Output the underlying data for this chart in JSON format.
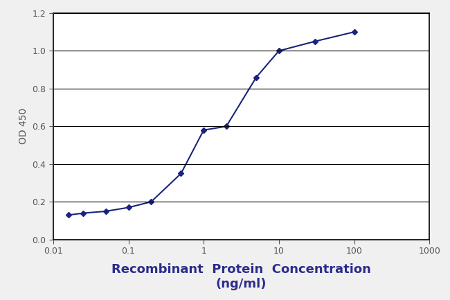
{
  "x": [
    0.016,
    0.025,
    0.05,
    0.1,
    0.2,
    0.5,
    1.0,
    2.0,
    5.0,
    10.0,
    30.0,
    100.0
  ],
  "y": [
    0.13,
    0.14,
    0.15,
    0.17,
    0.2,
    0.35,
    0.58,
    0.6,
    0.86,
    1.0,
    1.05,
    1.1
  ],
  "line_color": "#1a237e",
  "marker": "D",
  "marker_size": 4,
  "marker_color": "#1a237e",
  "line_width": 1.5,
  "xlim_min": 0.01,
  "xlim_max": 1000,
  "ylim_min": 0.0,
  "ylim_max": 1.2,
  "yticks": [
    0.0,
    0.2,
    0.4,
    0.6,
    0.8,
    1.0,
    1.2
  ],
  "ylabel": "OD 450",
  "xlabel_line1": "Recombinant  Protein  Concentration",
  "xlabel_line2": "(ng/ml)",
  "background_color": "#f0f0f0",
  "plot_bg_color": "#ffffff",
  "grid_color": "#000000",
  "axis_label_color": "#2b2b8c",
  "ylabel_color": "#555555",
  "axis_fontsize": 13,
  "ylabel_fontsize": 10,
  "tick_fontsize": 9,
  "tick_color": "#555555",
  "figwidth": 6.5,
  "figheight": 4.33,
  "dpi": 100
}
